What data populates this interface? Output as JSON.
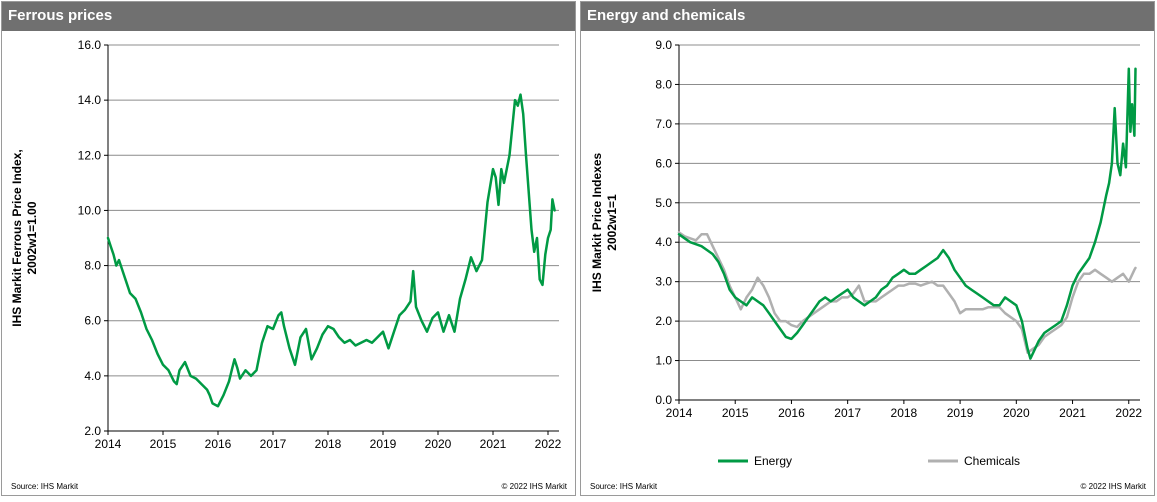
{
  "source_text": "Source:  IHS Markit",
  "copyright_text": "© 2022  IHS Markit",
  "colors": {
    "energy": "#009a44",
    "chemicals": "#b0b0b0",
    "header": "#707070"
  },
  "chart_data": [
    {
      "type": "line",
      "title": "Ferrous prices",
      "ylabel_line1": "IHS Markit Ferrous Price Index,",
      "ylabel_line2": "2002w1=1.00",
      "xlabel": "",
      "xlim": [
        2014,
        2022.2
      ],
      "ylim": [
        2.0,
        16.0
      ],
      "x_ticks": [
        "2014",
        "2015",
        "2016",
        "2017",
        "2018",
        "2019",
        "2020",
        "2021",
        "2022"
      ],
      "y_ticks": [
        "2.0",
        "4.0",
        "6.0",
        "8.0",
        "10.0",
        "12.0",
        "14.0",
        "16.0"
      ],
      "grid": true,
      "legend": null,
      "series": [
        {
          "name": "Ferrous",
          "color": "#009a44",
          "x": [
            2014.0,
            2014.05,
            2014.1,
            2014.15,
            2014.2,
            2014.3,
            2014.4,
            2014.5,
            2014.6,
            2014.7,
            2014.8,
            2014.9,
            2015.0,
            2015.1,
            2015.2,
            2015.25,
            2015.3,
            2015.4,
            2015.5,
            2015.6,
            2015.7,
            2015.8,
            2015.85,
            2015.9,
            2016.0,
            2016.05,
            2016.1,
            2016.2,
            2016.25,
            2016.3,
            2016.35,
            2016.4,
            2016.5,
            2016.6,
            2016.7,
            2016.8,
            2016.9,
            2017.0,
            2017.1,
            2017.15,
            2017.2,
            2017.3,
            2017.4,
            2017.5,
            2017.6,
            2017.7,
            2017.8,
            2017.9,
            2018.0,
            2018.1,
            2018.2,
            2018.3,
            2018.4,
            2018.5,
            2018.6,
            2018.7,
            2018.8,
            2018.9,
            2019.0,
            2019.1,
            2019.2,
            2019.3,
            2019.4,
            2019.5,
            2019.55,
            2019.6,
            2019.7,
            2019.8,
            2019.9,
            2020.0,
            2020.1,
            2020.2,
            2020.3,
            2020.4,
            2020.5,
            2020.6,
            2020.7,
            2020.8,
            2020.9,
            2021.0,
            2021.05,
            2021.1,
            2021.15,
            2021.2,
            2021.3,
            2021.4,
            2021.45,
            2021.5,
            2021.55,
            2021.6,
            2021.7,
            2021.75,
            2021.8,
            2021.85,
            2021.9,
            2021.95,
            2022.0,
            2022.05,
            2022.08,
            2022.12
          ],
          "y": [
            9.0,
            8.7,
            8.4,
            8.0,
            8.2,
            7.6,
            7.0,
            6.8,
            6.3,
            5.7,
            5.3,
            4.8,
            4.4,
            4.2,
            3.8,
            3.7,
            4.2,
            4.5,
            4.0,
            3.9,
            3.7,
            3.5,
            3.3,
            3.0,
            2.9,
            3.1,
            3.3,
            3.8,
            4.2,
            4.6,
            4.3,
            3.9,
            4.2,
            4.0,
            4.2,
            5.2,
            5.8,
            5.7,
            6.2,
            6.3,
            5.8,
            5.0,
            4.4,
            5.4,
            5.7,
            4.6,
            5.0,
            5.5,
            5.8,
            5.7,
            5.4,
            5.2,
            5.3,
            5.1,
            5.2,
            5.3,
            5.2,
            5.4,
            5.6,
            5.0,
            5.6,
            6.2,
            6.4,
            6.7,
            7.8,
            6.5,
            6.0,
            5.6,
            6.1,
            6.3,
            5.6,
            6.2,
            5.6,
            6.8,
            7.5,
            8.3,
            7.8,
            8.2,
            10.3,
            11.5,
            11.2,
            10.2,
            11.5,
            11.0,
            12.0,
            14.0,
            13.8,
            14.2,
            13.5,
            12.0,
            9.3,
            8.5,
            9.0,
            7.5,
            7.3,
            8.4,
            9.0,
            9.3,
            10.4,
            10.0
          ]
        }
      ]
    },
    {
      "type": "line",
      "title": "Energy and chemicals",
      "ylabel_line1": "IHS Markit Price Indexes",
      "ylabel_line2": "2002w1=1",
      "xlabel": "",
      "xlim": [
        2014,
        2022.2
      ],
      "ylim": [
        0.0,
        9.0
      ],
      "x_ticks": [
        "2014",
        "2015",
        "2016",
        "2017",
        "2018",
        "2019",
        "2020",
        "2021",
        "2022"
      ],
      "y_ticks": [
        "0.0",
        "1.0",
        "2.0",
        "3.0",
        "4.0",
        "5.0",
        "6.0",
        "7.0",
        "8.0",
        "9.0"
      ],
      "grid": true,
      "legend": "bottom",
      "series": [
        {
          "name": "Energy",
          "color": "#009a44",
          "x": [
            2014.0,
            2014.1,
            2014.2,
            2014.3,
            2014.4,
            2014.5,
            2014.6,
            2014.7,
            2014.8,
            2014.9,
            2015.0,
            2015.1,
            2015.2,
            2015.3,
            2015.4,
            2015.5,
            2015.6,
            2015.7,
            2015.8,
            2015.9,
            2016.0,
            2016.1,
            2016.2,
            2016.3,
            2016.4,
            2016.5,
            2016.6,
            2016.7,
            2016.8,
            2016.9,
            2017.0,
            2017.1,
            2017.2,
            2017.3,
            2017.4,
            2017.5,
            2017.6,
            2017.7,
            2017.8,
            2017.9,
            2018.0,
            2018.1,
            2018.2,
            2018.3,
            2018.4,
            2018.5,
            2018.6,
            2018.7,
            2018.8,
            2018.9,
            2019.0,
            2019.1,
            2019.2,
            2019.3,
            2019.4,
            2019.5,
            2019.6,
            2019.7,
            2019.8,
            2019.9,
            2020.0,
            2020.1,
            2020.2,
            2020.25,
            2020.3,
            2020.4,
            2020.5,
            2020.6,
            2020.7,
            2020.8,
            2020.9,
            2021.0,
            2021.1,
            2021.2,
            2021.3,
            2021.4,
            2021.5,
            2021.6,
            2021.65,
            2021.7,
            2021.75,
            2021.8,
            2021.85,
            2021.9,
            2021.95,
            2022.0,
            2022.03,
            2022.06,
            2022.1,
            2022.12
          ],
          "y": [
            4.2,
            4.1,
            4.0,
            3.95,
            3.9,
            3.8,
            3.7,
            3.5,
            3.2,
            2.8,
            2.6,
            2.5,
            2.4,
            2.6,
            2.5,
            2.4,
            2.2,
            2.0,
            1.8,
            1.6,
            1.55,
            1.7,
            1.9,
            2.1,
            2.3,
            2.5,
            2.6,
            2.5,
            2.6,
            2.7,
            2.8,
            2.6,
            2.5,
            2.4,
            2.5,
            2.6,
            2.8,
            2.9,
            3.1,
            3.2,
            3.3,
            3.2,
            3.2,
            3.3,
            3.4,
            3.5,
            3.6,
            3.8,
            3.6,
            3.3,
            3.1,
            2.9,
            2.8,
            2.7,
            2.6,
            2.5,
            2.4,
            2.4,
            2.6,
            2.5,
            2.4,
            2.0,
            1.3,
            1.05,
            1.2,
            1.5,
            1.7,
            1.8,
            1.9,
            2.0,
            2.4,
            2.9,
            3.2,
            3.4,
            3.6,
            4.0,
            4.5,
            5.2,
            5.5,
            6.0,
            7.4,
            6.0,
            5.7,
            6.5,
            5.9,
            8.4,
            6.8,
            7.5,
            6.7,
            8.4
          ]
        },
        {
          "name": "Chemicals",
          "color": "#b0b0b0",
          "x": [
            2014.0,
            2014.1,
            2014.2,
            2014.3,
            2014.4,
            2014.5,
            2014.6,
            2014.7,
            2014.8,
            2014.9,
            2015.0,
            2015.1,
            2015.2,
            2015.3,
            2015.4,
            2015.5,
            2015.6,
            2015.7,
            2015.8,
            2015.9,
            2016.0,
            2016.1,
            2016.2,
            2016.3,
            2016.4,
            2016.5,
            2016.6,
            2016.7,
            2016.8,
            2016.9,
            2017.0,
            2017.1,
            2017.2,
            2017.3,
            2017.4,
            2017.5,
            2017.6,
            2017.7,
            2017.8,
            2017.9,
            2018.0,
            2018.1,
            2018.2,
            2018.3,
            2018.4,
            2018.5,
            2018.6,
            2018.7,
            2018.8,
            2018.9,
            2019.0,
            2019.1,
            2019.2,
            2019.3,
            2019.4,
            2019.5,
            2019.6,
            2019.7,
            2019.8,
            2019.9,
            2020.0,
            2020.1,
            2020.2,
            2020.3,
            2020.4,
            2020.5,
            2020.6,
            2020.7,
            2020.8,
            2020.9,
            2021.0,
            2021.1,
            2021.2,
            2021.3,
            2021.4,
            2021.5,
            2021.6,
            2021.7,
            2021.8,
            2021.9,
            2022.0,
            2022.1,
            2022.12
          ],
          "y": [
            4.25,
            4.15,
            4.1,
            4.05,
            4.2,
            4.2,
            3.9,
            3.6,
            3.3,
            2.9,
            2.6,
            2.3,
            2.6,
            2.8,
            3.1,
            2.9,
            2.6,
            2.2,
            2.0,
            2.0,
            1.9,
            1.85,
            2.0,
            2.1,
            2.2,
            2.3,
            2.4,
            2.5,
            2.5,
            2.6,
            2.6,
            2.7,
            2.9,
            2.5,
            2.5,
            2.5,
            2.6,
            2.7,
            2.8,
            2.9,
            2.9,
            2.95,
            2.95,
            2.9,
            2.95,
            3.0,
            2.9,
            2.9,
            2.7,
            2.5,
            2.2,
            2.3,
            2.3,
            2.3,
            2.3,
            2.35,
            2.35,
            2.35,
            2.2,
            2.1,
            2.0,
            1.8,
            1.2,
            1.3,
            1.4,
            1.6,
            1.7,
            1.8,
            1.9,
            2.1,
            2.6,
            3.0,
            3.2,
            3.2,
            3.3,
            3.2,
            3.1,
            3.0,
            3.1,
            3.2,
            3.0,
            3.3,
            3.35
          ]
        }
      ]
    }
  ]
}
